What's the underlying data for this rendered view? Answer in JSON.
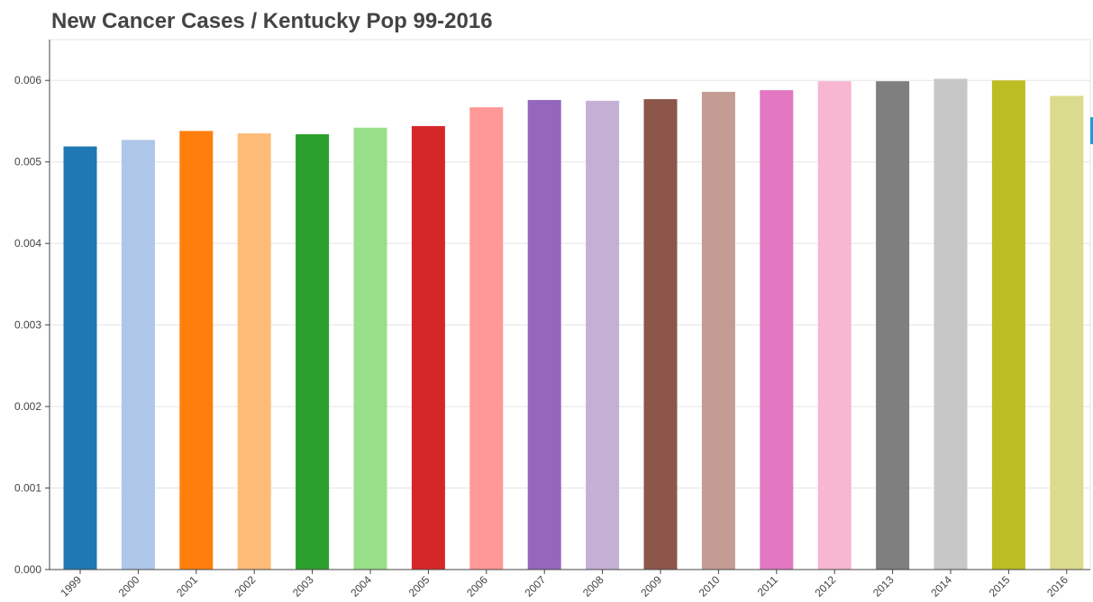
{
  "chart_data": {
    "type": "bar",
    "title": "New Cancer Cases / Kentucky Pop 99-2016",
    "xlabel": "",
    "ylabel": "",
    "categories": [
      "1999",
      "2000",
      "2001",
      "2002",
      "2003",
      "2004",
      "2005",
      "2006",
      "2007",
      "2008",
      "2009",
      "2010",
      "2011",
      "2012",
      "2013",
      "2014",
      "2015",
      "2016"
    ],
    "values": [
      0.00519,
      0.00527,
      0.00538,
      0.00535,
      0.00534,
      0.00542,
      0.00544,
      0.00567,
      0.00576,
      0.00575,
      0.00577,
      0.00586,
      0.00588,
      0.00599,
      0.00599,
      0.00602,
      0.006,
      0.00581
    ],
    "colors": [
      "#1f77b4",
      "#aec7e8",
      "#ff7f0e",
      "#ffbb78",
      "#2ca02c",
      "#98df8a",
      "#d62728",
      "#ff9896",
      "#9467bd",
      "#c5b0d5",
      "#8c564b",
      "#c49c94",
      "#e377c2",
      "#f7b6d2",
      "#7f7f7f",
      "#c7c7c7",
      "#bcbd22",
      "#dbdb8d"
    ],
    "yticks": [
      "0.000",
      "0.001",
      "0.002",
      "0.003",
      "0.004",
      "0.005",
      "0.006"
    ],
    "ylim": [
      0,
      0.0065
    ],
    "grid": true,
    "legend": "none"
  }
}
